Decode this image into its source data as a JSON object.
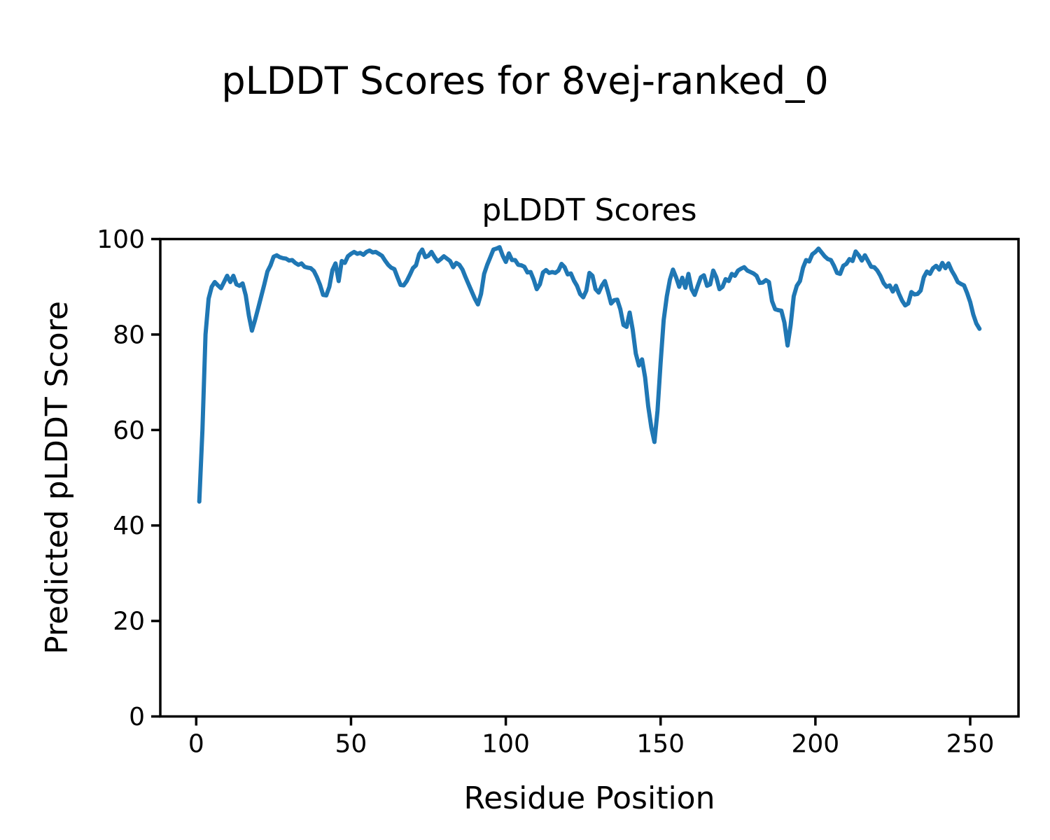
{
  "figure": {
    "suptitle": "pLDDT Scores for 8vej-ranked_0",
    "background": "#ffffff",
    "text_color": "#000000"
  },
  "chart_data": {
    "type": "line",
    "title": "pLDDT Scores",
    "xlabel": "Residue Position",
    "ylabel": "Predicted pLDDT Score",
    "xlim": [
      -11.6,
      265.6
    ],
    "ylim": [
      0,
      100
    ],
    "xticks": [
      0,
      50,
      100,
      150,
      200,
      250
    ],
    "yticks": [
      0,
      20,
      40,
      60,
      80,
      100
    ],
    "grid": false,
    "legend_position": "none",
    "spine_color": "#000000",
    "series": [
      {
        "name": "pLDDT",
        "color": "#1f77b4",
        "x_start": 1,
        "x_step": 1,
        "y": [
          45.0,
          60.0,
          80.0,
          87.5,
          90.0,
          91.0,
          90.3,
          89.7,
          91.0,
          92.3,
          91.0,
          92.3,
          90.5,
          90.2,
          90.7,
          88.2,
          84.0,
          80.8,
          83.0,
          85.5,
          88.0,
          90.5,
          93.2,
          94.5,
          96.3,
          96.6,
          96.2,
          96.0,
          95.9,
          95.5,
          95.6,
          95.0,
          94.6,
          94.9,
          94.2,
          94.0,
          93.9,
          93.3,
          92.0,
          90.4,
          88.3,
          88.2,
          90.0,
          93.5,
          94.9,
          91.2,
          95.4,
          95.0,
          96.4,
          96.9,
          97.3,
          96.9,
          97.1,
          96.7,
          97.3,
          97.6,
          97.2,
          97.3,
          96.9,
          96.5,
          95.5,
          94.6,
          94.0,
          93.7,
          92.0,
          90.4,
          90.3,
          91.2,
          92.5,
          93.9,
          94.5,
          96.8,
          97.8,
          96.2,
          96.5,
          97.3,
          96.2,
          95.3,
          95.8,
          96.4,
          95.9,
          95.4,
          94.1,
          95.0,
          94.6,
          93.6,
          92.0,
          90.5,
          89.0,
          87.5,
          86.3,
          88.5,
          92.7,
          94.6,
          96.2,
          97.8,
          98.0,
          98.3,
          96.5,
          95.2,
          97.0,
          95.6,
          95.6,
          94.6,
          94.5,
          94.2,
          93.0,
          93.1,
          91.5,
          89.5,
          90.5,
          93.0,
          93.5,
          92.9,
          93.1,
          92.9,
          93.4,
          94.8,
          94.1,
          92.6,
          92.8,
          91.3,
          90.2,
          88.5,
          87.8,
          89.2,
          92.9,
          92.3,
          89.5,
          88.8,
          90.2,
          91.2,
          89.0,
          86.5,
          87.2,
          87.3,
          85.3,
          82.0,
          81.6,
          84.6,
          81.0,
          76.0,
          73.5,
          74.8,
          71.0,
          65.0,
          60.5,
          57.5,
          64.0,
          74.0,
          83.0,
          88.0,
          91.5,
          93.6,
          92.0,
          90.0,
          91.9,
          89.8,
          92.7,
          89.5,
          88.3,
          90.2,
          92.0,
          92.4,
          90.2,
          90.5,
          93.4,
          92.0,
          89.5,
          90.0,
          91.6,
          91.2,
          92.7,
          92.3,
          93.4,
          93.8,
          94.1,
          93.4,
          93.1,
          92.8,
          92.3,
          90.8,
          90.9,
          91.4,
          91.0,
          87.0,
          85.3,
          85.1,
          85.0,
          82.5,
          77.7,
          82.0,
          88.0,
          90.2,
          91.2,
          94.0,
          95.6,
          95.3,
          96.8,
          97.3,
          98.0,
          97.2,
          96.4,
          95.8,
          95.6,
          94.4,
          92.9,
          92.7,
          94.4,
          94.8,
          95.8,
          95.4,
          97.4,
          96.6,
          95.5,
          96.6,
          95.4,
          94.2,
          94.1,
          93.4,
          92.3,
          90.8,
          90.0,
          90.3,
          89.0,
          90.2,
          88.5,
          87.1,
          86.1,
          86.5,
          88.9,
          88.4,
          88.5,
          89.2,
          92.0,
          93.2,
          92.7,
          93.9,
          94.4,
          93.6,
          95.0,
          93.9,
          94.9,
          93.4,
          92.3,
          91.0,
          90.6,
          90.3,
          88.7,
          86.8,
          84.2,
          82.3,
          81.2
        ]
      }
    ]
  }
}
